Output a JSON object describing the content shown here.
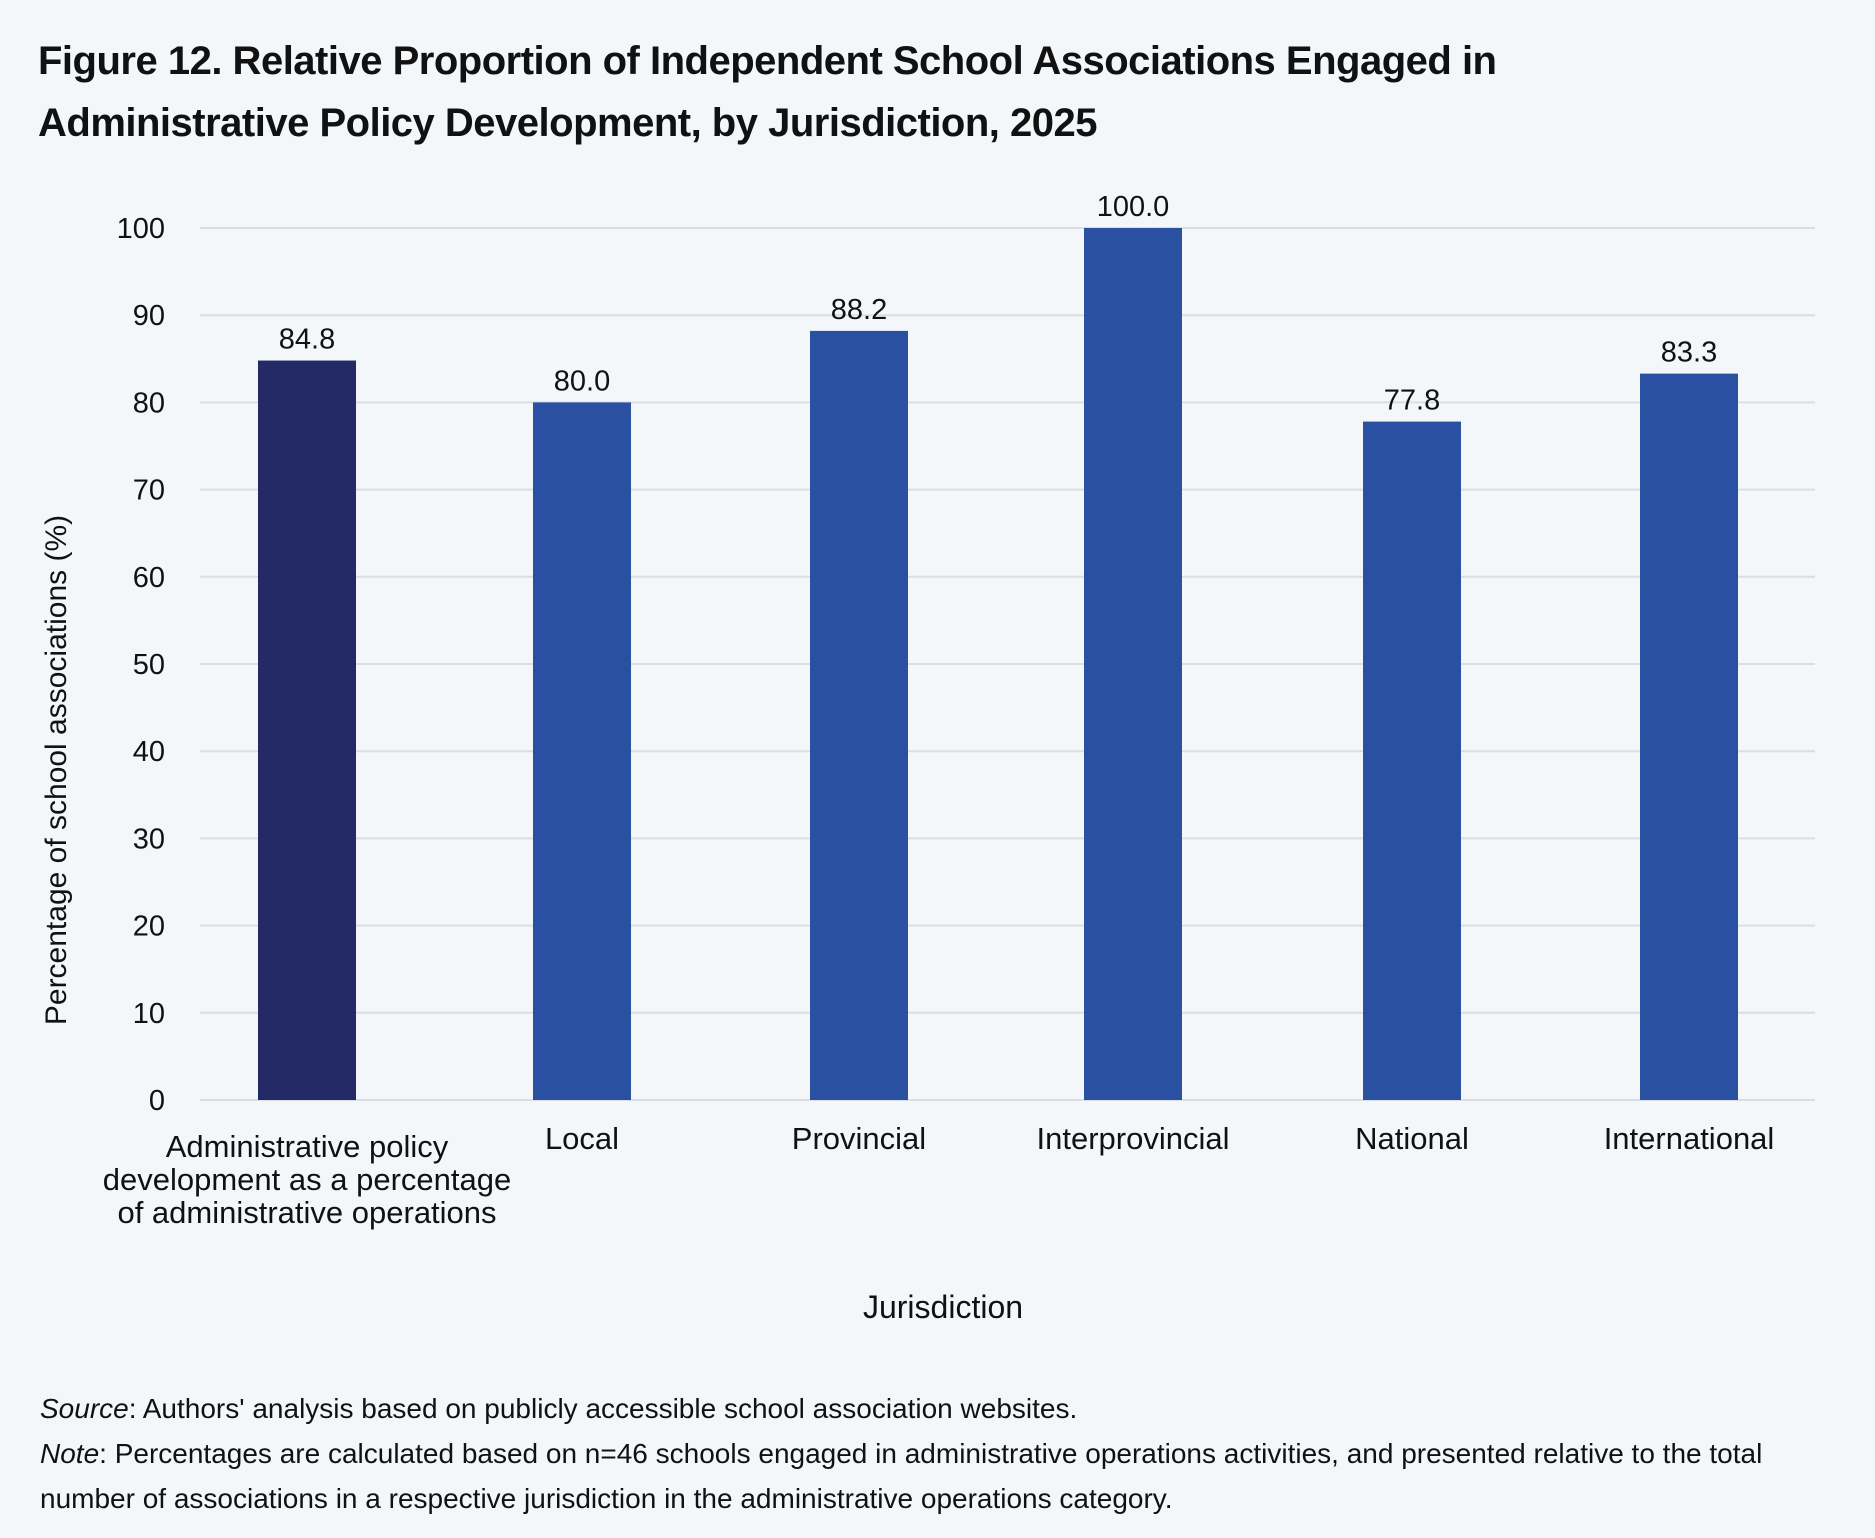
{
  "title_lines": [
    "Figure 12. Relative Proportion of Independent School Associations Engaged in",
    "Administrative Policy Development, by Jurisdiction, 2025"
  ],
  "chart_data": {
    "type": "bar",
    "categories": [
      [
        "Administrative policy",
        "development as a percentage",
        "of administrative operations"
      ],
      [
        "Local"
      ],
      [
        "Provincial"
      ],
      [
        "Interprovincial"
      ],
      [
        "National"
      ],
      [
        "International"
      ]
    ],
    "values": [
      84.8,
      80.0,
      88.2,
      100.0,
      77.8,
      83.3
    ],
    "value_labels": [
      "84.8",
      "80.0",
      "88.2",
      "100.0",
      "77.8",
      "83.3"
    ],
    "bar_colors": [
      "#232a66",
      "#2a50a1",
      "#2a50a1",
      "#2a50a1",
      "#2a50a1",
      "#2a50a1"
    ],
    "xlabel": "Jurisdiction",
    "ylabel": "Percentage of school associations (%)",
    "ylim": [
      0,
      100
    ],
    "yticks": [
      0,
      10,
      20,
      30,
      40,
      50,
      60,
      70,
      80,
      90,
      100
    ],
    "grid": true,
    "grid_color": "#d9dee5"
  },
  "footer": {
    "source_label": "Source",
    "source_text": ": Authors' analysis based on publicly accessible school association websites.",
    "note_label": "Note",
    "note_text": ": Percentages are calculated based on n=46 schools engaged in administrative operations activities, and presented relative to the total number of associations in a respective jurisdiction in the administrative operations category."
  }
}
